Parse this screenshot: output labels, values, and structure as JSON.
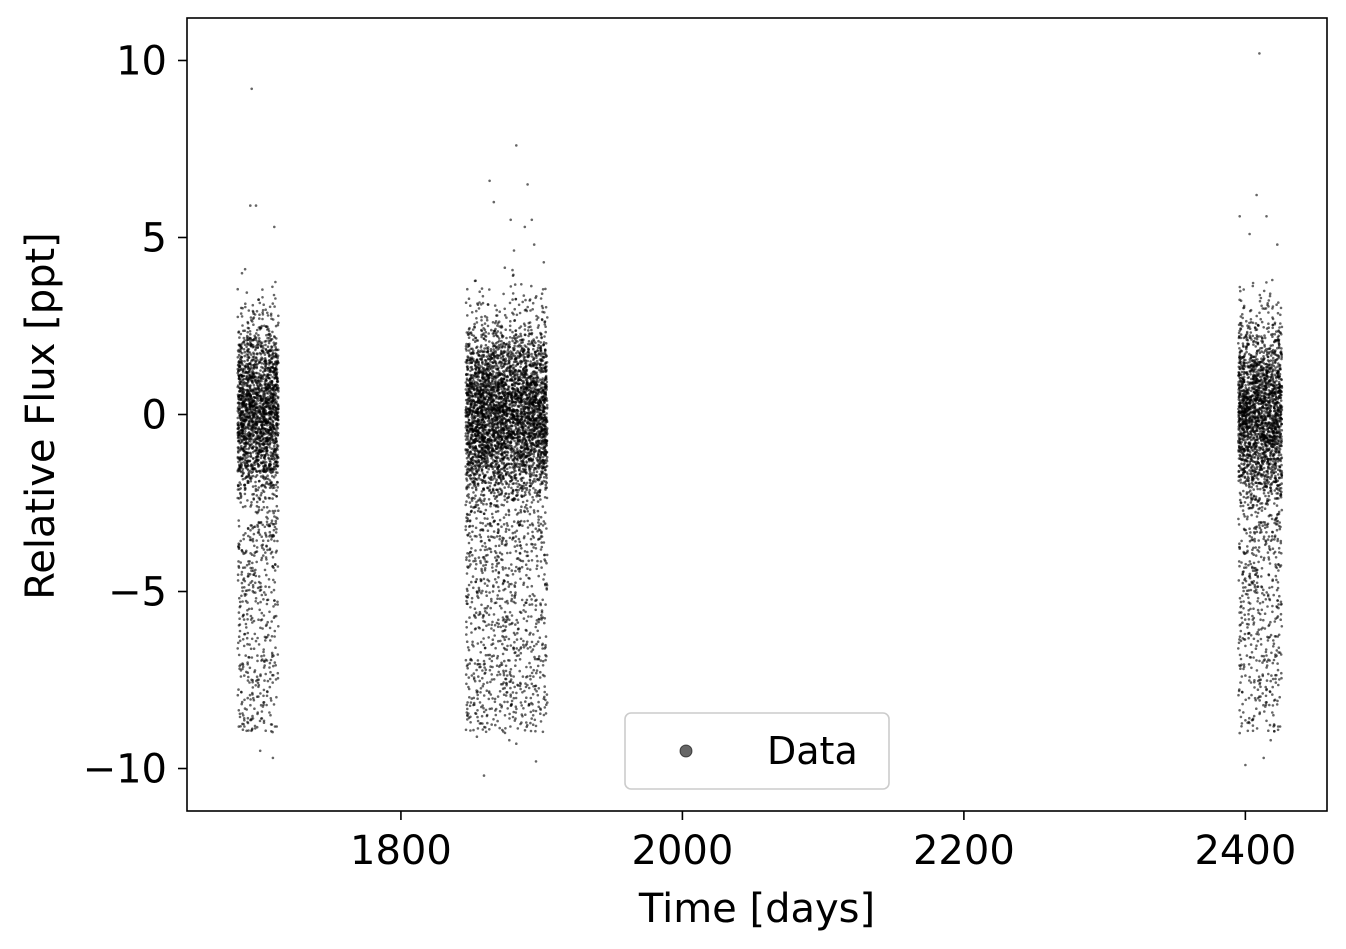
{
  "chart_data": {
    "type": "scatter",
    "xlabel": "Time [days]",
    "ylabel": "Relative Flux [ppt]",
    "xlim": [
      1648,
      2458
    ],
    "ylim": [
      -11.2,
      11.2
    ],
    "xticks": [
      1800,
      2000,
      2200,
      2400
    ],
    "xtick_labels": [
      "1800",
      "2000",
      "2200",
      "2400"
    ],
    "yticks": [
      -10,
      -5,
      0,
      5,
      10
    ],
    "ytick_labels": [
      "−10",
      "−5",
      "0",
      "5",
      "10"
    ],
    "grid": false,
    "legend": {
      "placement": "bottom-center",
      "entries": [
        "Data"
      ]
    },
    "series": [
      {
        "name": "Data",
        "color": "#000000",
        "opacity": 0.6,
        "marker": "circle",
        "segments": [
          {
            "x_range": [
              1684,
              1713
            ],
            "core_sigma": 1.3
          },
          {
            "x_range": [
              1846,
              1904
            ],
            "core_sigma": 1.3
          },
          {
            "x_range": [
              2395,
              2426
            ],
            "core_sigma": 1.3
          }
        ],
        "outliers": [
          {
            "x": 1694,
            "y": 9.2
          },
          {
            "x": 1693,
            "y": 5.9
          },
          {
            "x": 1697,
            "y": 5.9
          },
          {
            "x": 1710,
            "y": 5.3
          },
          {
            "x": 1700,
            "y": -9.5
          },
          {
            "x": 1709,
            "y": -9.7
          },
          {
            "x": 1688,
            "y": -8.5
          },
          {
            "x": 1882,
            "y": 7.6
          },
          {
            "x": 1863,
            "y": 6.6
          },
          {
            "x": 1890,
            "y": 6.5
          },
          {
            "x": 1866,
            "y": 6.0
          },
          {
            "x": 1878,
            "y": 5.5
          },
          {
            "x": 1893,
            "y": 5.5
          },
          {
            "x": 1888,
            "y": 5.3
          },
          {
            "x": 1859,
            "y": -10.2
          },
          {
            "x": 1854,
            "y": -9.1
          },
          {
            "x": 1877,
            "y": -9.2
          },
          {
            "x": 1882,
            "y": -9.3
          },
          {
            "x": 1896,
            "y": -9.8
          },
          {
            "x": 2410,
            "y": 10.2
          },
          {
            "x": 2408,
            "y": 6.2
          },
          {
            "x": 2415,
            "y": 5.6
          },
          {
            "x": 2396,
            "y": 5.6
          },
          {
            "x": 2403,
            "y": 5.1
          },
          {
            "x": 2400,
            "y": -9.9
          },
          {
            "x": 2413,
            "y": -9.7
          },
          {
            "x": 2396,
            "y": -9.0
          },
          {
            "x": 2418,
            "y": -9.2
          }
        ]
      }
    ]
  }
}
